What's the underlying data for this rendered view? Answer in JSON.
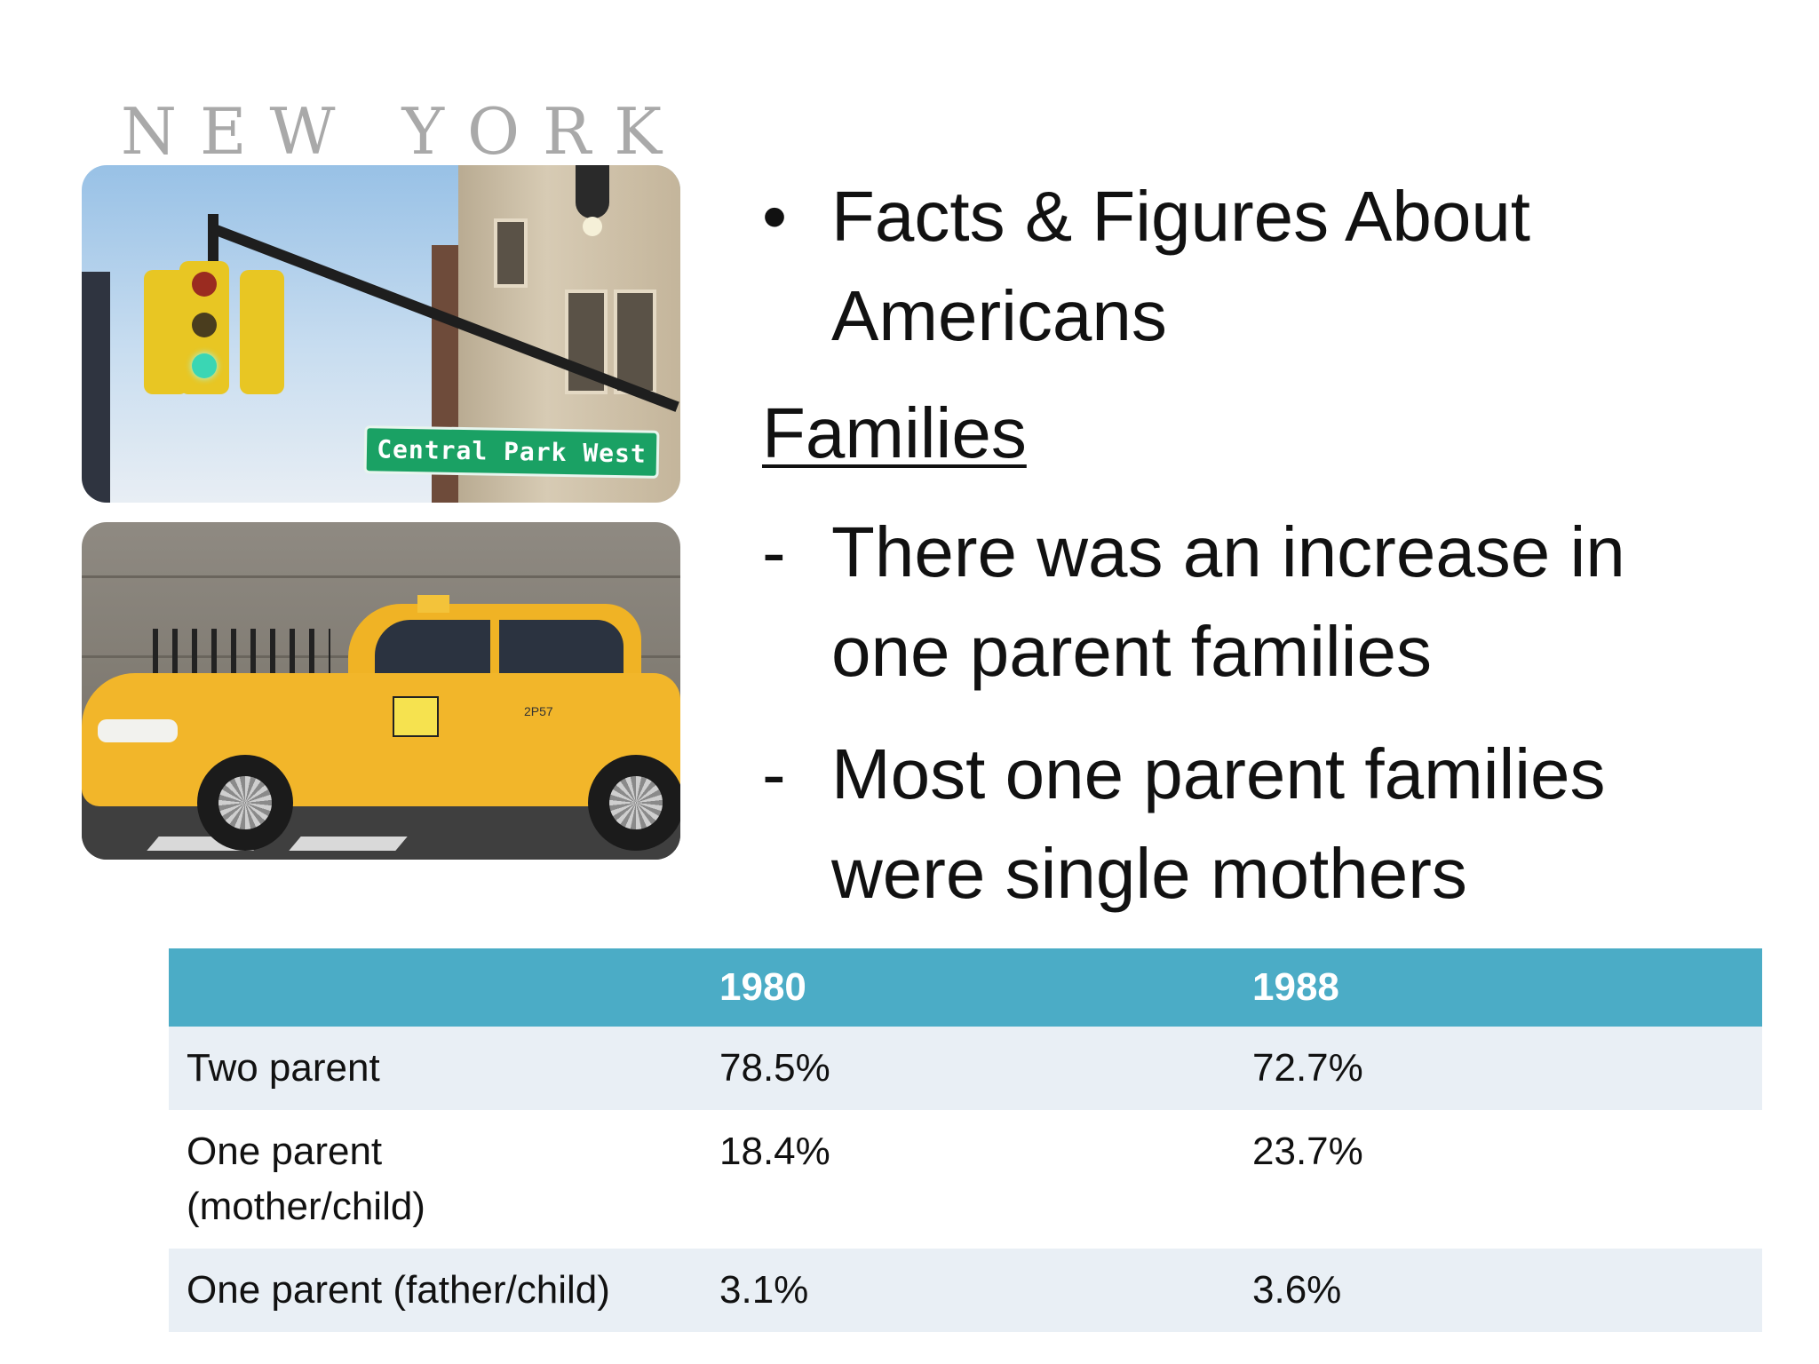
{
  "collage": {
    "title": "NEW YORK",
    "street_sign": "Central Park West",
    "taxi_number": "2P57"
  },
  "bullet": {
    "marker": "•",
    "line1": "Facts & Figures About",
    "line2": "Americans"
  },
  "section_heading": "Families",
  "points": [
    {
      "marker": "-",
      "line1": "There was an increase in",
      "line2": "one parent families"
    },
    {
      "marker": "-",
      "line1": "Most one parent families",
      "line2": "were single mothers"
    }
  ],
  "table": {
    "header": [
      "",
      "1980",
      "1988"
    ],
    "rows": [
      {
        "label_line1": "Two parent",
        "label_line2": "",
        "v1980": "78.5%",
        "v1988": "72.7%"
      },
      {
        "label_line1": "One parent",
        "label_line2": "(mother/child)",
        "v1980": "18.4%",
        "v1988": "23.7%"
      },
      {
        "label_line1": "One parent (father/child)",
        "label_line2": "",
        "v1980": "3.1%",
        "v1988": "3.6%"
      }
    ]
  },
  "colors": {
    "table_header": "#4bacc6",
    "table_band": "#e9eff5",
    "title_gray": "#a9a9a9",
    "taxi_yellow": "#f2b62a",
    "sign_green": "#1aa164"
  }
}
